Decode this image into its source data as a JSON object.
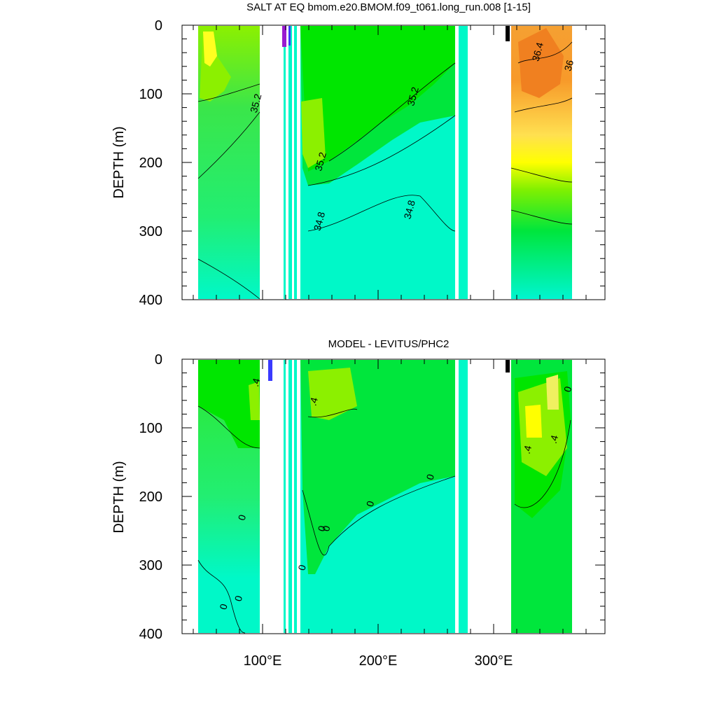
{
  "chart_data": [
    {
      "type": "heatmap",
      "title": "SALT AT EQ bmom.e20.BMOM.f09_t061.long_run.008 [1-15]",
      "ylabel": "DEPTH (m)",
      "xlabel": "",
      "ylim": [
        0,
        400
      ],
      "y_reversed": true,
      "y_ticks": [
        0,
        100,
        200,
        300,
        400
      ],
      "x_ticks": [
        100,
        200,
        300
      ],
      "x_tick_labels": [
        "100°E",
        "200°E",
        "300°E"
      ],
      "x_tick_labels_shown": false,
      "contour_labels": [
        {
          "text": "35.2",
          "x": 97,
          "y": 115
        },
        {
          "text": "35.2",
          "x": 233,
          "y": 105
        },
        {
          "text": "35.2",
          "x": 153,
          "y": 200
        },
        {
          "text": "34.8",
          "x": 152,
          "y": 287
        },
        {
          "text": "34.8",
          "x": 230,
          "y": 270
        },
        {
          "text": "36.4",
          "x": 341,
          "y": 40
        },
        {
          "text": "36",
          "x": 368,
          "y": 60
        }
      ]
    },
    {
      "type": "heatmap",
      "title": "MODEL - LEVITUS/PHC2",
      "ylabel": "DEPTH (m)",
      "xlabel": "",
      "ylim": [
        0,
        400
      ],
      "y_reversed": true,
      "y_ticks": [
        0,
        100,
        200,
        300,
        400
      ],
      "x_ticks": [
        100,
        200,
        300
      ],
      "x_tick_labels": [
        "100°E",
        "200°E",
        "300°E"
      ],
      "x_tick_labels_shown": true,
      "contour_labels": [
        {
          "text": ".4",
          "x": 97,
          "y": 35
        },
        {
          "text": ".4",
          "x": 147,
          "y": 63
        },
        {
          "text": ".4",
          "x": 355,
          "y": 118
        },
        {
          "text": ".4",
          "x": 332,
          "y": 133
        },
        {
          "text": "0",
          "x": 367,
          "y": 45
        },
        {
          "text": "0",
          "x": 248,
          "y": 173
        },
        {
          "text": "0",
          "x": 196,
          "y": 212
        },
        {
          "text": "0",
          "x": 85,
          "y": 232
        },
        {
          "text": "0",
          "x": 154,
          "y": 248
        },
        {
          "text": "0",
          "x": 158,
          "y": 248
        },
        {
          "text": "0",
          "x": 137,
          "y": 305
        },
        {
          "text": "0",
          "x": 82,
          "y": 350
        },
        {
          "text": "0",
          "x": 69,
          "y": 362
        }
      ]
    }
  ]
}
